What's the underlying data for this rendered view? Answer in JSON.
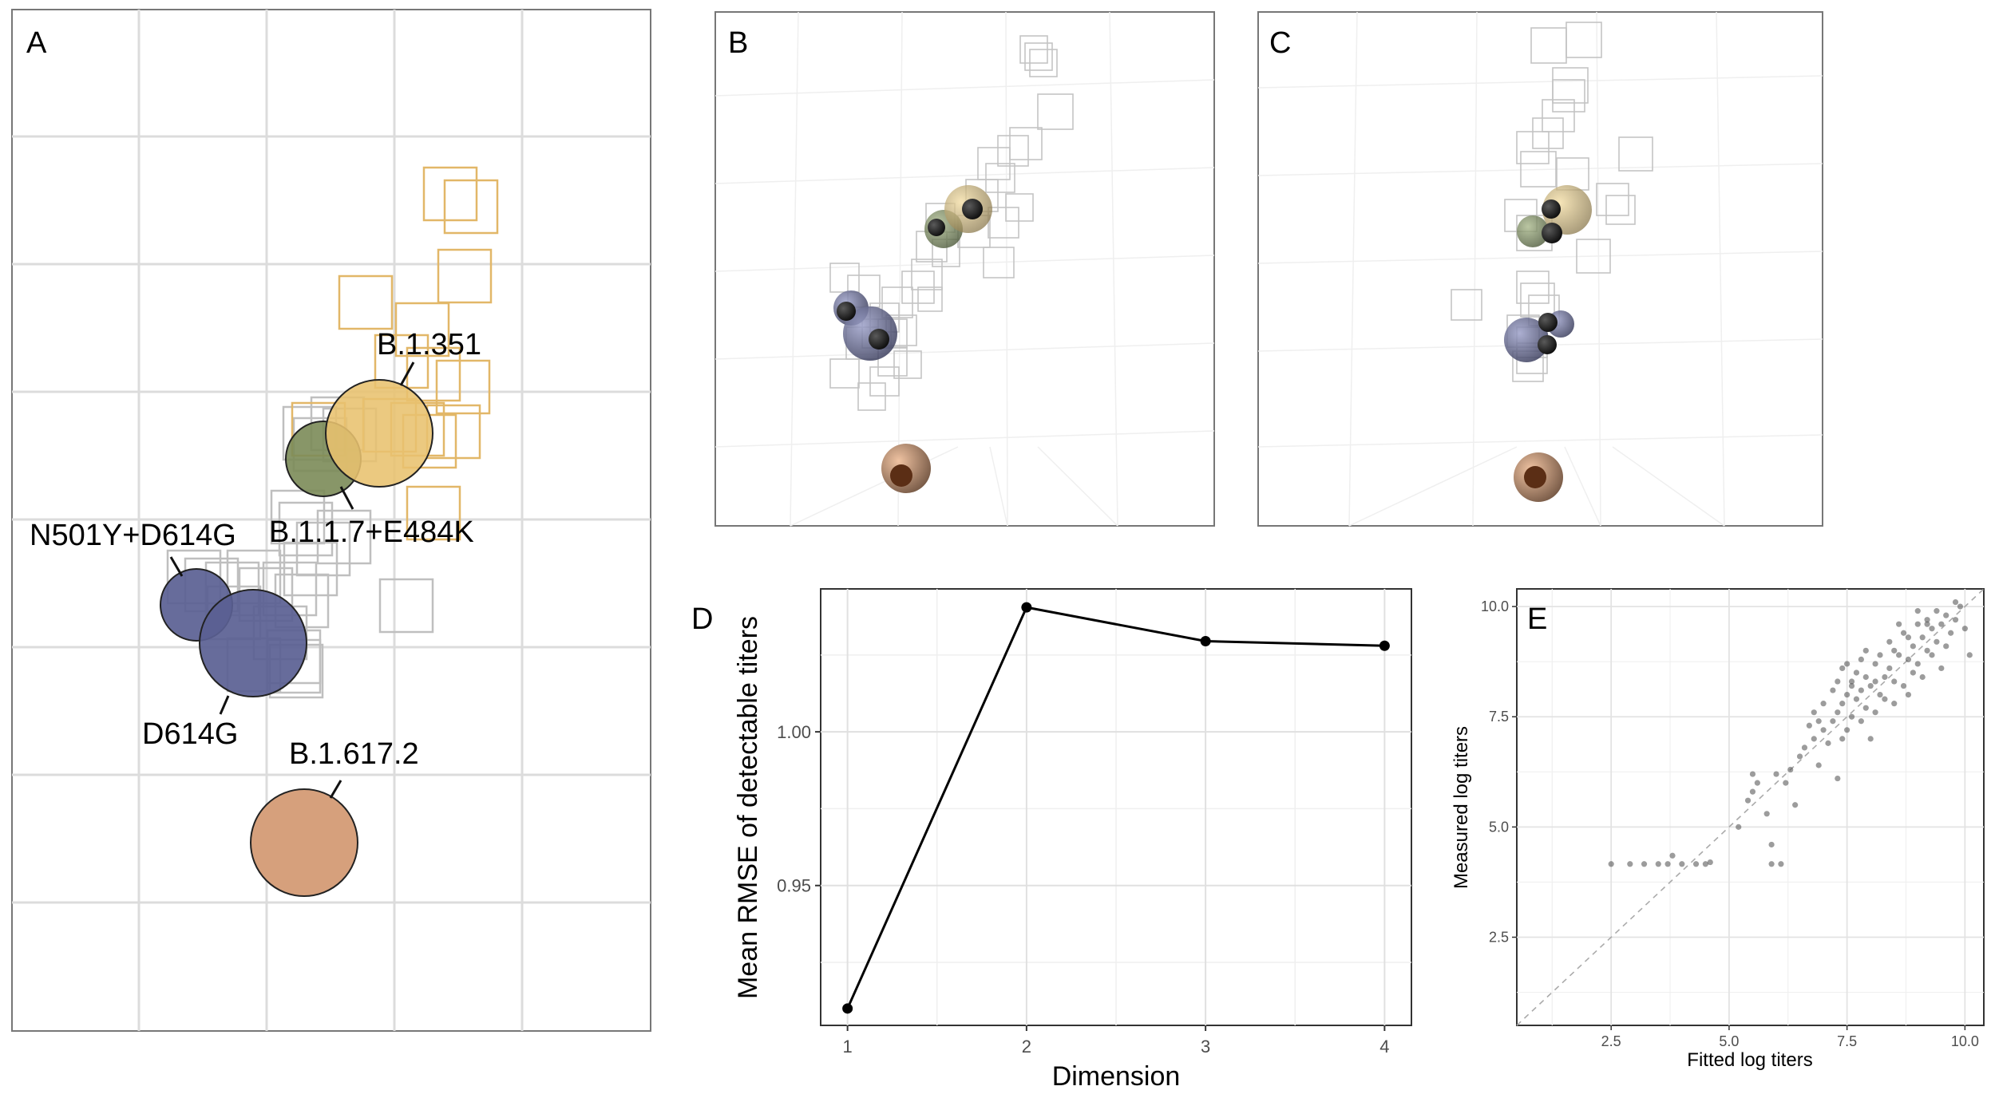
{
  "colors": {
    "b1351": "#e8c16e",
    "b117e484k": "#7b8b58",
    "n501y": "#5a5f93",
    "d614g": "#5a5f93",
    "b16172": "#d6a07c",
    "serum_box": "#bfbfbf",
    "b1351_serum": "#e2b768",
    "grid": "#dcdcdc",
    "panel_border": "#777777"
  },
  "panels": {
    "A": {
      "label": "A"
    },
    "B": {
      "label": "B"
    },
    "C": {
      "label": "C"
    },
    "D": {
      "label": "D"
    },
    "E": {
      "label": "E"
    }
  },
  "antigens": [
    "B.1.351",
    "B.1.1.7+E484K",
    "N501Y+D614G",
    "D614G",
    "B.1.617.2"
  ],
  "chart_data": [
    {
      "panel": "D",
      "type": "line",
      "title": "",
      "xlabel": "Dimension",
      "ylabel": "Mean RMSE of detectable titers",
      "x": [
        1,
        2,
        3,
        4
      ],
      "y": [
        0.91,
        1.0405,
        1.0295,
        1.028
      ],
      "xlim": [
        0.85,
        4.15
      ],
      "ylim": [
        0.9045,
        1.0465
      ],
      "xticks": [
        "1",
        "2",
        "3",
        "4"
      ],
      "yticks": [
        "0.95",
        "1.00"
      ],
      "ytick_values": [
        0.95,
        1.0
      ],
      "grid": true
    },
    {
      "panel": "E",
      "type": "scatter",
      "title": "",
      "xlabel": "Fitted log titers",
      "ylabel": "Measured log titers",
      "xlim": [
        0.5,
        10.4
      ],
      "ylim": [
        0.5,
        10.4
      ],
      "xticks": [
        "2.5",
        "5.0",
        "7.5",
        "10.0"
      ],
      "xtick_values": [
        2.5,
        5.0,
        7.5,
        10.0
      ],
      "yticks": [
        "2.5",
        "5.0",
        "7.5",
        "10.0"
      ],
      "ytick_values": [
        2.5,
        5.0,
        7.5,
        10.0
      ],
      "reference_line": "y = x (dashed)",
      "points": [
        [
          2.5,
          4.16
        ],
        [
          2.9,
          4.16
        ],
        [
          3.2,
          4.16
        ],
        [
          3.5,
          4.16
        ],
        [
          3.7,
          4.16
        ],
        [
          4.0,
          4.16
        ],
        [
          4.3,
          4.16
        ],
        [
          4.5,
          4.16
        ],
        [
          3.8,
          4.35
        ],
        [
          4.6,
          4.2
        ],
        [
          5.2,
          5.0
        ],
        [
          5.4,
          5.6
        ],
        [
          5.5,
          5.8
        ],
        [
          5.5,
          6.2
        ],
        [
          5.6,
          6.0
        ],
        [
          5.8,
          5.3
        ],
        [
          5.9,
          4.6
        ],
        [
          5.9,
          4.16
        ],
        [
          6.1,
          4.16
        ],
        [
          6.0,
          6.2
        ],
        [
          6.2,
          6.0
        ],
        [
          6.3,
          6.3
        ],
        [
          6.4,
          5.5
        ],
        [
          6.5,
          6.6
        ],
        [
          6.6,
          6.8
        ],
        [
          6.7,
          7.3
        ],
        [
          6.8,
          7.0
        ],
        [
          6.9,
          6.4
        ],
        [
          7.0,
          7.2
        ],
        [
          7.1,
          6.9
        ],
        [
          7.2,
          7.4
        ],
        [
          7.3,
          7.6
        ],
        [
          7.3,
          6.1
        ],
        [
          7.4,
          7.8
        ],
        [
          7.4,
          8.6
        ],
        [
          7.5,
          8.0
        ],
        [
          7.5,
          7.2
        ],
        [
          7.6,
          8.3
        ],
        [
          7.6,
          7.5
        ],
        [
          7.7,
          7.9
        ],
        [
          7.7,
          8.5
        ],
        [
          7.8,
          8.1
        ],
        [
          7.8,
          7.4
        ],
        [
          7.9,
          8.4
        ],
        [
          7.9,
          7.7
        ],
        [
          8.0,
          8.2
        ],
        [
          8.0,
          7.0
        ],
        [
          8.1,
          8.7
        ],
        [
          8.1,
          7.6
        ],
        [
          8.2,
          8.0
        ],
        [
          8.2,
          8.9
        ],
        [
          8.3,
          7.9
        ],
        [
          8.4,
          8.6
        ],
        [
          8.4,
          9.2
        ],
        [
          8.5,
          8.3
        ],
        [
          8.5,
          7.8
        ],
        [
          8.6,
          8.9
        ],
        [
          8.7,
          8.2
        ],
        [
          8.7,
          9.4
        ],
        [
          8.8,
          8.8
        ],
        [
          8.8,
          8.0
        ],
        [
          8.9,
          9.1
        ],
        [
          8.9,
          8.5
        ],
        [
          9.0,
          9.6
        ],
        [
          9.0,
          8.7
        ],
        [
          9.1,
          9.3
        ],
        [
          9.1,
          8.4
        ],
        [
          9.2,
          9.7
        ],
        [
          9.2,
          9.0
        ],
        [
          9.3,
          9.5
        ],
        [
          9.3,
          8.9
        ],
        [
          9.4,
          9.9
        ],
        [
          9.4,
          9.2
        ],
        [
          9.5,
          9.6
        ],
        [
          9.5,
          8.6
        ],
        [
          9.6,
          9.8
        ],
        [
          9.7,
          9.4
        ],
        [
          9.8,
          9.7
        ],
        [
          9.9,
          10.0
        ],
        [
          10.0,
          9.5
        ],
        [
          10.1,
          8.9
        ],
        [
          9.6,
          9.1
        ],
        [
          9.0,
          9.9
        ],
        [
          8.6,
          9.6
        ],
        [
          8.3,
          8.4
        ],
        [
          7.6,
          8.2
        ],
        [
          7.2,
          8.1
        ],
        [
          7.0,
          7.8
        ],
        [
          6.8,
          7.6
        ],
        [
          7.4,
          7.0
        ],
        [
          7.9,
          9.0
        ],
        [
          8.8,
          9.3
        ],
        [
          9.2,
          9.6
        ],
        [
          9.8,
          10.1
        ],
        [
          7.5,
          8.7
        ],
        [
          7.8,
          8.8
        ],
        [
          8.1,
          8.3
        ],
        [
          6.9,
          7.4
        ],
        [
          7.3,
          8.3
        ],
        [
          8.5,
          9.0
        ]
      ],
      "grid": true
    }
  ]
}
